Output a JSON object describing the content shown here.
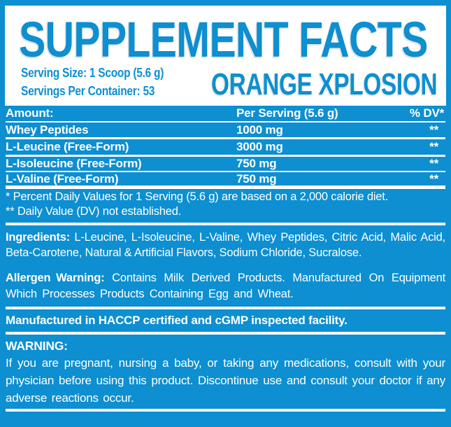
{
  "colors": {
    "brand_blue": "#0d8fd1",
    "text_white": "#ffffff",
    "panel_white": "#ffffff"
  },
  "header": {
    "title": "SUPPLEMENT FACTS",
    "serving_size": "Serving Size: 1 Scoop (5.6 g)",
    "servings_per_container": "Servings Per Container: 53",
    "flavor": "ORANGE XPLOSION"
  },
  "nutrition_table": {
    "columns": {
      "amount": "Amount:",
      "per_serving": "Per Serving (5.6 g)",
      "daily_value": "% DV*"
    },
    "rows": [
      {
        "name": "Whey Peptides",
        "per_serving": "1000 mg",
        "daily_value": "**"
      },
      {
        "name": "L-Leucine (Free-Form)",
        "per_serving": "3000 mg",
        "daily_value": "**"
      },
      {
        "name": "L-Isoleucine (Free-Form)",
        "per_serving": "750 mg",
        "daily_value": "**"
      },
      {
        "name": "L-Valine (Free-Form)",
        "per_serving": "750 mg",
        "daily_value": "**"
      }
    ]
  },
  "footnotes": {
    "percent_dv": "* Percent Daily Values for 1 Serving (5.6 g) are based on a 2,000 calorie diet.",
    "not_established": "** Daily Value (DV) not established."
  },
  "ingredients": {
    "label": "Ingredients:",
    "text": "L-Leucine, L-Isoleucine, L-Valine, Whey Peptides, Citric Acid, Malic Acid, Beta-Carotene, Natural & Artificial Flavors, Sodium Chloride, Sucralose."
  },
  "allergen": {
    "label": "Allergen Warning:",
    "text": "Contains Milk Derived Products. Manufactured On Equipment Which Processes Products Containing Egg and Wheat."
  },
  "manufacturing_note": "Manufactured in HACCP certified and cGMP inspected facility.",
  "warning": {
    "label": "WARNING:",
    "text": "If you are pregnant, nursing a baby, or taking any medications, consult with your physician before using this product. Discontinue use and consult your doctor if any adverse reactions occur."
  }
}
